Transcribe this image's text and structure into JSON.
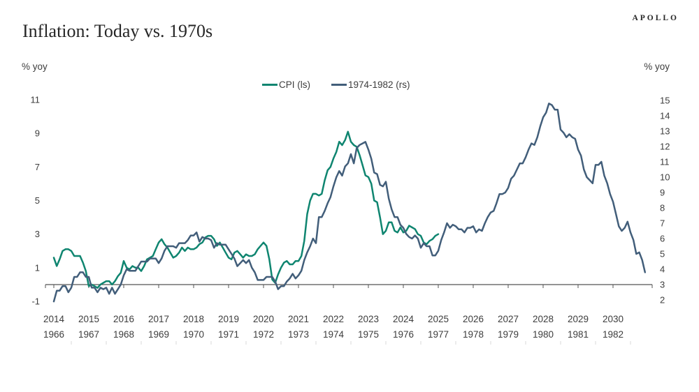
{
  "header": {
    "brand": "APOLLO",
    "title": "Inflation: Today vs. 1970s"
  },
  "chart_data": {
    "type": "line",
    "title": "Inflation: Today vs. 1970s",
    "ylabel_left": "% yoy",
    "ylabel_right": "% yoy",
    "grid": false,
    "legend_position": "top-center",
    "ylim_left": [
      -1,
      11
    ],
    "yticks_left": [
      11,
      9,
      7,
      5,
      3,
      1,
      -1
    ],
    "ylim_right": [
      2,
      15
    ],
    "yticks_right": [
      15,
      14,
      13,
      12,
      11,
      10,
      9,
      8,
      7,
      6,
      5,
      4,
      3,
      2
    ],
    "x_axis_top_years": [
      2014,
      2015,
      2016,
      2017,
      2018,
      2019,
      2020,
      2021,
      2022,
      2023,
      2024,
      2025,
      2026,
      2027,
      2028,
      2029,
      2030
    ],
    "x_axis_bottom_years": [
      1966,
      1967,
      1968,
      1969,
      1970,
      1971,
      1972,
      1973,
      1974,
      1975,
      1976,
      1977,
      1978,
      1979,
      1980,
      1981,
      1982
    ],
    "colors": {
      "cpi_teal": "#0f8570",
      "seventies_navy": "#425e7a",
      "axis": "#555555",
      "label_text": "#3d3d3d",
      "faint_tick": "#d9d9d9"
    },
    "series": [
      {
        "name": "CPI (ls)",
        "axis": "left",
        "color": "#0f8570",
        "start_year": 2014,
        "start_month": 1,
        "freq": "monthly",
        "values": [
          1.6,
          1.1,
          1.5,
          2.0,
          2.1,
          2.1,
          2.0,
          1.7,
          1.7,
          1.7,
          1.3,
          0.8,
          -0.1,
          0.0,
          -0.1,
          -0.2,
          0.0,
          0.1,
          0.2,
          0.2,
          0.0,
          0.2,
          0.5,
          0.7,
          1.4,
          1.0,
          0.9,
          1.1,
          1.0,
          1.0,
          0.8,
          1.1,
          1.5,
          1.6,
          1.7,
          2.1,
          2.5,
          2.7,
          2.4,
          2.2,
          1.9,
          1.6,
          1.7,
          1.9,
          2.2,
          2.0,
          2.2,
          2.1,
          2.1,
          2.2,
          2.4,
          2.5,
          2.8,
          2.9,
          2.9,
          2.7,
          2.3,
          2.5,
          2.2,
          1.9,
          1.6,
          1.5,
          1.9,
          2.0,
          1.8,
          1.6,
          1.8,
          1.7,
          1.7,
          1.8,
          2.1,
          2.3,
          2.5,
          2.3,
          1.5,
          0.3,
          0.1,
          0.6,
          1.0,
          1.3,
          1.4,
          1.2,
          1.2,
          1.4,
          1.4,
          1.7,
          2.6,
          4.2,
          5.0,
          5.4,
          5.4,
          5.3,
          5.4,
          6.2,
          6.8,
          7.0,
          7.5,
          7.9,
          8.5,
          8.3,
          8.6,
          9.1,
          8.5,
          8.3,
          8.2,
          7.7,
          7.1,
          6.5,
          6.4,
          6.0,
          5.0,
          4.9,
          4.0,
          3.0,
          3.2,
          3.7,
          3.7,
          3.2,
          3.1,
          3.4,
          3.1,
          3.2,
          3.5,
          3.4,
          3.3,
          3.0,
          2.9,
          2.5,
          2.4,
          2.6,
          2.7,
          2.9,
          3.0
        ]
      },
      {
        "name": "1974-1982 (rs)",
        "axis": "right",
        "color": "#425e7a",
        "start_year": 1966,
        "start_month": 1,
        "freq": "monthly",
        "values": [
          1.9,
          2.6,
          2.6,
          2.9,
          2.9,
          2.5,
          2.8,
          3.5,
          3.5,
          3.8,
          3.8,
          3.5,
          3.5,
          2.8,
          2.8,
          2.5,
          2.8,
          2.7,
          2.8,
          2.4,
          2.8,
          2.4,
          2.7,
          3.0,
          3.6,
          4.0,
          3.9,
          3.9,
          3.9,
          4.2,
          4.5,
          4.5,
          4.5,
          4.7,
          4.7,
          4.7,
          4.4,
          4.7,
          5.2,
          5.5,
          5.5,
          5.5,
          5.4,
          5.7,
          5.7,
          5.7,
          5.9,
          6.2,
          6.2,
          6.4,
          5.8,
          6.1,
          6.0,
          6.0,
          5.9,
          5.4,
          5.7,
          5.6,
          5.6,
          5.6,
          5.3,
          5.0,
          4.7,
          4.2,
          4.4,
          4.6,
          4.4,
          4.6,
          4.1,
          3.8,
          3.3,
          3.3,
          3.3,
          3.5,
          3.5,
          3.5,
          3.2,
          2.7,
          2.9,
          2.9,
          3.2,
          3.4,
          3.7,
          3.4,
          3.6,
          3.9,
          4.6,
          5.1,
          5.5,
          6.0,
          5.7,
          7.4,
          7.4,
          7.8,
          8.3,
          8.7,
          9.4,
          10.0,
          10.4,
          10.1,
          10.7,
          10.9,
          11.5,
          10.9,
          11.9,
          12.1,
          12.2,
          12.3,
          11.8,
          11.2,
          10.3,
          10.2,
          9.5,
          9.4,
          9.7,
          8.6,
          7.9,
          7.4,
          7.4,
          6.9,
          6.7,
          6.3,
          6.1,
          6.0,
          6.2,
          6.0,
          5.4,
          5.7,
          5.5,
          5.5,
          4.9,
          4.9,
          5.2,
          5.9,
          6.4,
          7.0,
          6.7,
          6.9,
          6.8,
          6.6,
          6.6,
          6.4,
          6.7,
          6.7,
          6.8,
          6.4,
          6.6,
          6.5,
          7.0,
          7.4,
          7.7,
          7.8,
          8.3,
          8.9,
          8.9,
          9.0,
          9.3,
          9.9,
          10.1,
          10.5,
          10.9,
          10.9,
          11.3,
          11.8,
          12.2,
          12.1,
          12.6,
          13.3,
          13.9,
          14.2,
          14.8,
          14.7,
          14.4,
          14.4,
          13.1,
          12.9,
          12.6,
          12.8,
          12.6,
          12.5,
          11.8,
          11.4,
          10.5,
          10.0,
          9.8,
          9.6,
          10.8,
          10.8,
          11.0,
          10.1,
          9.6,
          8.9,
          8.4,
          7.6,
          6.8,
          6.5,
          6.7,
          7.1,
          6.4,
          5.9,
          5.0,
          5.1,
          4.6,
          3.8
        ]
      }
    ]
  }
}
